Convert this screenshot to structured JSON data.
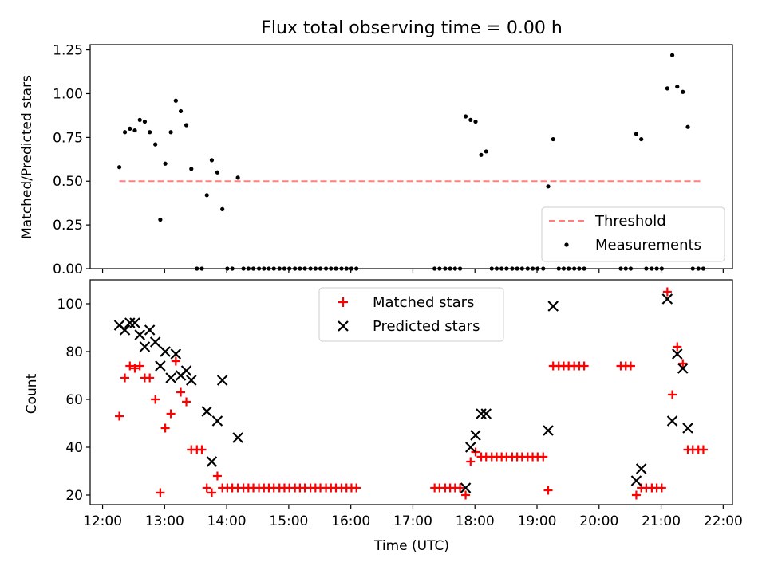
{
  "figure": {
    "title": "Flux total observing time = 0.00 h"
  },
  "chart_data": [
    {
      "type": "scatter",
      "ylabel": "Matched/Predicted stars",
      "ylim": [
        0,
        1.28
      ],
      "yticks": [
        0.0,
        0.25,
        0.5,
        0.75,
        1.0,
        1.25
      ],
      "ytick_labels": [
        "0.00",
        "0.25",
        "0.50",
        "0.75",
        "1.00",
        "1.25"
      ],
      "xlim": [
        11.8,
        22.15
      ],
      "grid": false,
      "legend_position": "lower-right",
      "threshold": {
        "name": "Threshold",
        "y": 0.5,
        "x": [
          12.27,
          21.67
        ],
        "color": "#ff7f7f"
      },
      "series": [
        {
          "name": "Measurements",
          "color": "#000000",
          "points": [
            [
              12.27,
              0.58
            ],
            [
              12.36,
              0.78
            ],
            [
              12.44,
              0.8
            ],
            [
              12.52,
              0.79
            ],
            [
              12.6,
              0.85
            ],
            [
              12.68,
              0.84
            ],
            [
              12.76,
              0.78
            ],
            [
              12.85,
              0.71
            ],
            [
              12.93,
              0.28
            ],
            [
              13.01,
              0.6
            ],
            [
              13.1,
              0.78
            ],
            [
              13.18,
              0.96
            ],
            [
              13.26,
              0.9
            ],
            [
              13.35,
              0.82
            ],
            [
              13.43,
              0.57
            ],
            [
              13.52,
              0.0
            ],
            [
              13.6,
              0.0
            ],
            [
              13.68,
              0.42
            ],
            [
              13.76,
              0.62
            ],
            [
              13.85,
              0.55
            ],
            [
              13.93,
              0.34
            ],
            [
              14.01,
              0.0
            ],
            [
              14.09,
              0.0
            ],
            [
              14.18,
              0.52
            ],
            [
              14.27,
              0.0
            ],
            [
              14.35,
              0.0
            ],
            [
              14.43,
              0.0
            ],
            [
              14.52,
              0.0
            ],
            [
              14.6,
              0.0
            ],
            [
              14.68,
              0.0
            ],
            [
              14.76,
              0.0
            ],
            [
              14.85,
              0.0
            ],
            [
              14.93,
              0.0
            ],
            [
              15.01,
              0.0
            ],
            [
              15.1,
              0.0
            ],
            [
              15.18,
              0.0
            ],
            [
              15.26,
              0.0
            ],
            [
              15.35,
              0.0
            ],
            [
              15.43,
              0.0
            ],
            [
              15.51,
              0.0
            ],
            [
              15.6,
              0.0
            ],
            [
              15.68,
              0.0
            ],
            [
              15.76,
              0.0
            ],
            [
              15.85,
              0.0
            ],
            [
              15.93,
              0.0
            ],
            [
              16.01,
              0.0
            ],
            [
              16.09,
              0.0
            ],
            [
              17.35,
              0.0
            ],
            [
              17.43,
              0.0
            ],
            [
              17.52,
              0.0
            ],
            [
              17.6,
              0.0
            ],
            [
              17.68,
              0.0
            ],
            [
              17.76,
              0.0
            ],
            [
              17.85,
              0.87
            ],
            [
              17.93,
              0.85
            ],
            [
              18.01,
              0.84
            ],
            [
              18.1,
              0.65
            ],
            [
              18.18,
              0.67
            ],
            [
              18.27,
              0.0
            ],
            [
              18.35,
              0.0
            ],
            [
              18.43,
              0.0
            ],
            [
              18.51,
              0.0
            ],
            [
              18.6,
              0.0
            ],
            [
              18.68,
              0.0
            ],
            [
              18.76,
              0.0
            ],
            [
              18.85,
              0.0
            ],
            [
              18.93,
              0.0
            ],
            [
              19.01,
              0.0
            ],
            [
              19.1,
              0.0
            ],
            [
              19.18,
              0.47
            ],
            [
              19.26,
              0.74
            ],
            [
              19.35,
              0.0
            ],
            [
              19.43,
              0.0
            ],
            [
              19.51,
              0.0
            ],
            [
              19.6,
              0.0
            ],
            [
              19.68,
              0.0
            ],
            [
              19.76,
              0.0
            ],
            [
              20.35,
              0.0
            ],
            [
              20.43,
              0.0
            ],
            [
              20.51,
              0.0
            ],
            [
              20.6,
              0.77
            ],
            [
              20.68,
              0.74
            ],
            [
              20.76,
              0.0
            ],
            [
              20.85,
              0.0
            ],
            [
              20.93,
              0.0
            ],
            [
              21.01,
              0.0
            ],
            [
              21.1,
              1.03
            ],
            [
              21.18,
              1.22
            ],
            [
              21.26,
              1.04
            ],
            [
              21.35,
              1.01
            ],
            [
              21.43,
              0.81
            ],
            [
              21.51,
              0.0
            ],
            [
              21.6,
              0.0
            ],
            [
              21.68,
              0.0
            ]
          ]
        }
      ]
    },
    {
      "type": "scatter",
      "xlabel": "Time (UTC)",
      "ylabel": "Count",
      "ylim": [
        16,
        110
      ],
      "yticks": [
        20,
        40,
        60,
        80,
        100
      ],
      "ytick_labels": [
        "20",
        "40",
        "60",
        "80",
        "100"
      ],
      "xlim": [
        11.8,
        22.15
      ],
      "xticks": [
        12,
        13,
        14,
        15,
        16,
        17,
        18,
        19,
        20,
        21,
        22
      ],
      "xtick_labels": [
        "12:00",
        "13:00",
        "14:00",
        "15:00",
        "16:00",
        "17:00",
        "18:00",
        "19:00",
        "20:00",
        "21:00",
        "22:00"
      ],
      "grid": false,
      "legend_position": "upper-center",
      "series": [
        {
          "name": "Matched stars",
          "marker": "plus",
          "color": "#ff0000",
          "points": [
            [
              12.27,
              53
            ],
            [
              12.36,
              69
            ],
            [
              12.44,
              74
            ],
            [
              12.52,
              73
            ],
            [
              12.6,
              74
            ],
            [
              12.68,
              69
            ],
            [
              12.76,
              69
            ],
            [
              12.85,
              60
            ],
            [
              12.93,
              21
            ],
            [
              13.01,
              48
            ],
            [
              13.1,
              54
            ],
            [
              13.18,
              76
            ],
            [
              13.26,
              63
            ],
            [
              13.35,
              59
            ],
            [
              13.43,
              39
            ],
            [
              13.52,
              39
            ],
            [
              13.6,
              39
            ],
            [
              13.68,
              23
            ],
            [
              13.76,
              21
            ],
            [
              13.85,
              28
            ],
            [
              13.93,
              23
            ],
            [
              14.01,
              23
            ],
            [
              14.09,
              23
            ],
            [
              14.18,
              23
            ],
            [
              14.27,
              23
            ],
            [
              14.35,
              23
            ],
            [
              14.43,
              23
            ],
            [
              14.52,
              23
            ],
            [
              14.6,
              23
            ],
            [
              14.68,
              23
            ],
            [
              14.76,
              23
            ],
            [
              14.85,
              23
            ],
            [
              14.93,
              23
            ],
            [
              15.01,
              23
            ],
            [
              15.1,
              23
            ],
            [
              15.18,
              23
            ],
            [
              15.26,
              23
            ],
            [
              15.35,
              23
            ],
            [
              15.43,
              23
            ],
            [
              15.51,
              23
            ],
            [
              15.6,
              23
            ],
            [
              15.68,
              23
            ],
            [
              15.76,
              23
            ],
            [
              15.85,
              23
            ],
            [
              15.93,
              23
            ],
            [
              16.01,
              23
            ],
            [
              16.09,
              23
            ],
            [
              17.35,
              23
            ],
            [
              17.43,
              23
            ],
            [
              17.52,
              23
            ],
            [
              17.6,
              23
            ],
            [
              17.68,
              23
            ],
            [
              17.76,
              23
            ],
            [
              17.85,
              20
            ],
            [
              17.93,
              34
            ],
            [
              18.01,
              38
            ],
            [
              18.1,
              36
            ],
            [
              18.18,
              36
            ],
            [
              18.27,
              36
            ],
            [
              18.35,
              36
            ],
            [
              18.43,
              36
            ],
            [
              18.51,
              36
            ],
            [
              18.6,
              36
            ],
            [
              18.68,
              36
            ],
            [
              18.76,
              36
            ],
            [
              18.85,
              36
            ],
            [
              18.93,
              36
            ],
            [
              19.01,
              36
            ],
            [
              19.1,
              36
            ],
            [
              19.18,
              22
            ],
            [
              19.26,
              74
            ],
            [
              19.35,
              74
            ],
            [
              19.43,
              74
            ],
            [
              19.51,
              74
            ],
            [
              19.6,
              74
            ],
            [
              19.68,
              74
            ],
            [
              19.76,
              74
            ],
            [
              20.35,
              74
            ],
            [
              20.43,
              74
            ],
            [
              20.51,
              74
            ],
            [
              20.6,
              20
            ],
            [
              20.68,
              23
            ],
            [
              20.76,
              23
            ],
            [
              20.85,
              23
            ],
            [
              20.93,
              23
            ],
            [
              21.01,
              23
            ],
            [
              21.1,
              105
            ],
            [
              21.18,
              62
            ],
            [
              21.26,
              82
            ],
            [
              21.35,
              75
            ],
            [
              21.43,
              39
            ],
            [
              21.51,
              39
            ],
            [
              21.6,
              39
            ],
            [
              21.68,
              39
            ]
          ]
        },
        {
          "name": "Predicted stars",
          "marker": "x",
          "color": "#000000",
          "points": [
            [
              12.27,
              91
            ],
            [
              12.36,
              89
            ],
            [
              12.44,
              92
            ],
            [
              12.52,
              92
            ],
            [
              12.6,
              87
            ],
            [
              12.68,
              82
            ],
            [
              12.76,
              89
            ],
            [
              12.85,
              84
            ],
            [
              12.93,
              74
            ],
            [
              13.01,
              80
            ],
            [
              13.1,
              69
            ],
            [
              13.18,
              79
            ],
            [
              13.26,
              70
            ],
            [
              13.35,
              72
            ],
            [
              13.43,
              68
            ],
            [
              13.68,
              55
            ],
            [
              13.76,
              34
            ],
            [
              13.85,
              51
            ],
            [
              13.93,
              68
            ],
            [
              14.18,
              44
            ],
            [
              17.85,
              23
            ],
            [
              17.93,
              40
            ],
            [
              18.01,
              45
            ],
            [
              18.1,
              54
            ],
            [
              18.18,
              54
            ],
            [
              19.18,
              47
            ],
            [
              19.26,
              99
            ],
            [
              20.6,
              26
            ],
            [
              20.68,
              31
            ],
            [
              21.1,
              102
            ],
            [
              21.18,
              51
            ],
            [
              21.26,
              79
            ],
            [
              21.35,
              73
            ],
            [
              21.43,
              48
            ]
          ]
        }
      ]
    }
  ]
}
